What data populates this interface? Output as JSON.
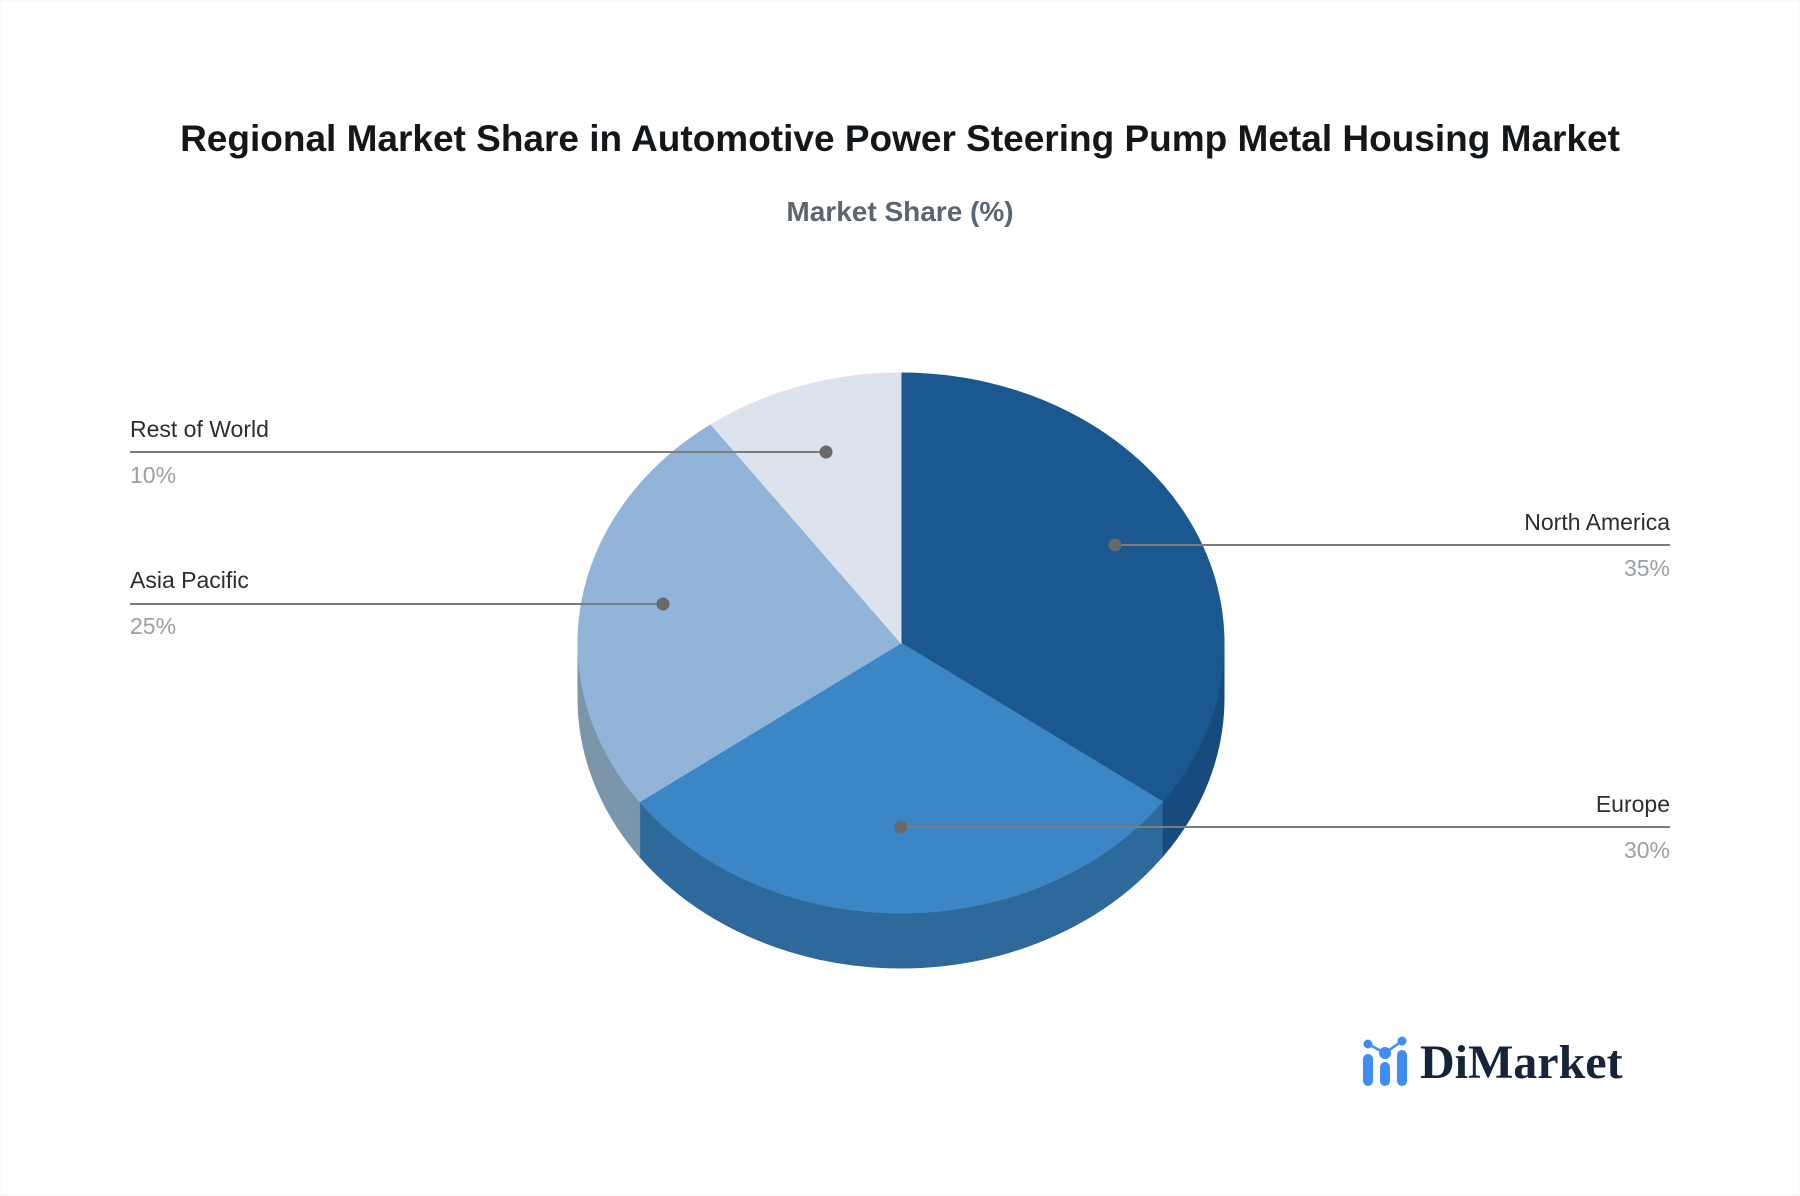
{
  "header": {
    "title": "Regional Market Share in Automotive Power Steering Pump Metal Housing Market",
    "subtitle": "Market Share (%)"
  },
  "chart_data": {
    "type": "pie",
    "title": "Regional Market Share in Automotive Power Steering Pump Metal Housing Market",
    "subtitle": "Market Share (%)",
    "unit": "%",
    "effect": "3d",
    "direction": "clockwise",
    "start_angle_deg": 0,
    "legend_position": "none",
    "callout_line_color": "#7d7d7d",
    "callout_dot_color": "#696969",
    "label_color": "#2b2d30",
    "percent_color": "#9aa0a5",
    "slices": [
      {
        "label": "North America",
        "value": 35,
        "display": "35%",
        "color": "#1c5890",
        "side_color": "#174b7d",
        "callout_side": "right"
      },
      {
        "label": "Europe",
        "value": 30,
        "display": "30%",
        "color": "#3d86c6",
        "side_color": "#2d699b",
        "callout_side": "right"
      },
      {
        "label": "Asia Pacific",
        "value": 25,
        "display": "25%",
        "color": "#92b4d8",
        "side_color": "#7b95ab",
        "callout_side": "left"
      },
      {
        "label": "Rest of World",
        "value": 10,
        "display": "10%",
        "color": "#dde3ed",
        "side_color": "#c9d2df",
        "callout_side": "left"
      }
    ]
  },
  "branding": {
    "logo_text": "DiMarket",
    "logo_color": "#16243a",
    "icon_color": "#3f8ef5",
    "icon_name": "bar-chart-logo-icon"
  }
}
